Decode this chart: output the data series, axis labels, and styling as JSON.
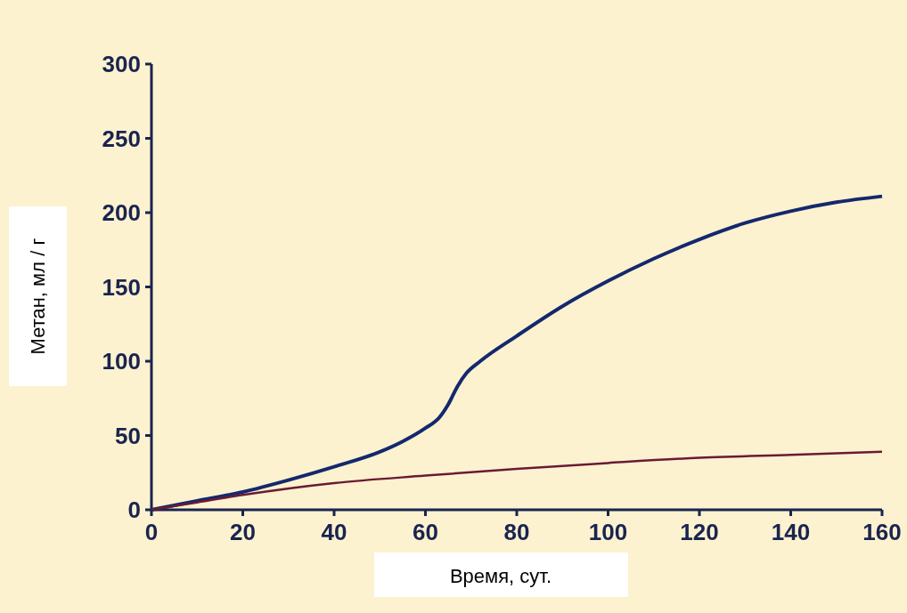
{
  "chart_data": {
    "type": "line",
    "xlabel": "Время, сут.",
    "ylabel": "Метан, мл / г",
    "xlim": [
      0,
      160
    ],
    "ylim": [
      0,
      300
    ],
    "xticks": [
      0,
      20,
      40,
      60,
      80,
      100,
      120,
      140,
      160
    ],
    "yticks": [
      0,
      50,
      100,
      150,
      200,
      250,
      300
    ],
    "grid": false,
    "marker": "none",
    "line_style": "solid",
    "series": [
      {
        "color": "#14286e",
        "x": [
          0,
          10,
          20,
          30,
          40,
          50,
          55,
          60,
          63,
          65,
          67,
          69,
          72,
          80,
          90,
          100,
          110,
          120,
          130,
          140,
          150,
          160
        ],
        "values": [
          0,
          6,
          12,
          20,
          29,
          39,
          46,
          55,
          62,
          71,
          83,
          92,
          100,
          117,
          137,
          154,
          169,
          182,
          193,
          201,
          207,
          211
        ]
      },
      {
        "color": "#6a1a34",
        "x": [
          0,
          10,
          20,
          40,
          60,
          80,
          100,
          120,
          140,
          160
        ],
        "values": [
          0,
          5,
          10,
          18,
          23,
          27.5,
          31.5,
          35,
          37,
          39
        ]
      }
    ]
  }
}
